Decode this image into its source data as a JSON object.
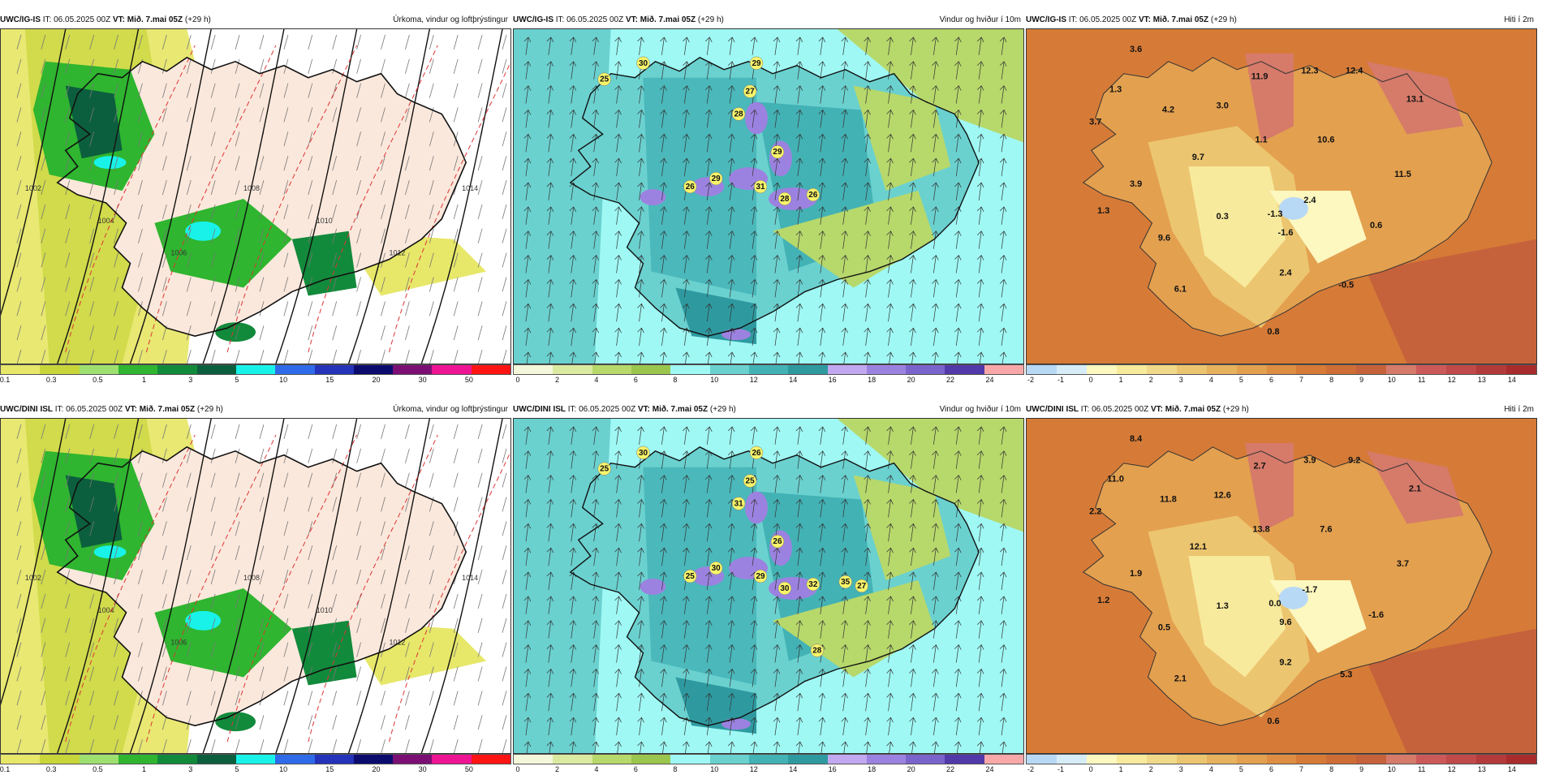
{
  "panels": [
    {
      "model": "UWC/IG-IS",
      "it_prefix": "IT:",
      "it": "06.05.2025 00Z",
      "vt_prefix": "VT:",
      "vt": "Mið. 7.mai 05Z",
      "lead": "(+29 h)",
      "title": "Úrkoma, vindur og loftþrýstingur",
      "legend": [
        "0.1",
        "0.3",
        "0.5",
        "1",
        "3",
        "5",
        "10",
        "15",
        "20",
        "30",
        "50"
      ],
      "legend_colors": [
        "#e7e76a",
        "#c8d63a",
        "#9ee06f",
        "#2fb52f",
        "#128a3b",
        "#0c5f3e",
        "#19f2e8",
        "#2f6ae9",
        "#2433b9",
        "#0b0b6e",
        "#7b0f74",
        "#ee1493",
        "#ff1414"
      ],
      "isobars": [
        "1002",
        "1004",
        "1006",
        "1008",
        "1010",
        "1012",
        "1014"
      ]
    },
    {
      "model": "UWC/IG-IS",
      "it_prefix": "IT:",
      "it": "06.05.2025 00Z",
      "vt_prefix": "VT:",
      "vt": "Mið. 7.mai 05Z",
      "lead": "(+29 h)",
      "title": "Vindur og hviður í 10m",
      "legend": [
        "0",
        "2",
        "4",
        "6",
        "8",
        "10",
        "12",
        "14",
        "16",
        "18",
        "20",
        "22",
        "24"
      ],
      "legend_colors": [
        "#f4f7d9",
        "#dbeaa1",
        "#b7d86b",
        "#9bc64d",
        "#9ff8f4",
        "#6ad1cf",
        "#43b2b5",
        "#2e9aa0",
        "#c1a8f0",
        "#9c82e0",
        "#7a64cc",
        "#5239a9",
        "#f8a8a8"
      ],
      "gusts": [
        "25",
        "30",
        "27",
        "29",
        "28",
        "29",
        "26",
        "29",
        "31",
        "28",
        "26"
      ]
    },
    {
      "model": "UWC/IG-IS",
      "it_prefix": "IT:",
      "it": "06.05.2025 00Z",
      "vt_prefix": "VT:",
      "vt": "Mið. 7.mai 05Z",
      "lead": "(+29 h)",
      "title": "Hiti í 2m",
      "legend": [
        "-2",
        "-1",
        "0",
        "1",
        "2",
        "3",
        "4",
        "5",
        "6",
        "7",
        "8",
        "9",
        "10",
        "11",
        "12",
        "13",
        "14"
      ],
      "legend_colors": [
        "#b8d9f5",
        "#d6ecf7",
        "#fdf7c0",
        "#f8ea9d",
        "#f1d98a",
        "#ecc570",
        "#e6b25e",
        "#e3a04f",
        "#de8e43",
        "#d67b37",
        "#cf6d36",
        "#c6623b",
        "#d67a6a",
        "#cc5959",
        "#c04a4a",
        "#b33a3a",
        "#a82c2c"
      ],
      "temps": [
        "3.6",
        "1.3",
        "3.7",
        "4.2",
        "3.0",
        "11.9",
        "1.1",
        "12.3",
        "12.4",
        "13.1",
        "10.6",
        "9.7",
        "11.5",
        "3.9",
        "1.3",
        "0.3",
        "-1.3",
        "2.4",
        "-1.6",
        "0.6",
        "9.6",
        "2.4",
        "6.1",
        "-0.5",
        "0.8"
      ]
    },
    {
      "model": "UWC/DINI ISL",
      "it_prefix": "IT:",
      "it": "06.05.2025 00Z",
      "vt_prefix": "VT:",
      "vt": "Mið. 7.mai 05Z",
      "lead": "(+29 h)",
      "title": "Úrkoma, vindur og loftþrýstingur",
      "legend": [
        "0.1",
        "0.3",
        "0.5",
        "1",
        "3",
        "5",
        "10",
        "15",
        "20",
        "30",
        "50"
      ],
      "legend_colors": [
        "#e7e76a",
        "#c8d63a",
        "#9ee06f",
        "#2fb52f",
        "#128a3b",
        "#0c5f3e",
        "#19f2e8",
        "#2f6ae9",
        "#2433b9",
        "#0b0b6e",
        "#7b0f74",
        "#ee1493",
        "#ff1414"
      ],
      "isobars": [
        "1002",
        "1004",
        "1006",
        "1008",
        "1010",
        "1012",
        "1014"
      ]
    },
    {
      "model": "UWC/DINI ISL",
      "it_prefix": "IT:",
      "it": "06.05.2025 00Z",
      "vt_prefix": "VT:",
      "vt": "Mið. 7.mai 05Z",
      "lead": "(+29 h)",
      "title": "Vindur og hviður í 10m",
      "legend": [
        "0",
        "2",
        "4",
        "6",
        "8",
        "10",
        "12",
        "14",
        "16",
        "18",
        "20",
        "22",
        "24"
      ],
      "legend_colors": [
        "#f4f7d9",
        "#dbeaa1",
        "#b7d86b",
        "#9bc64d",
        "#9ff8f4",
        "#6ad1cf",
        "#43b2b5",
        "#2e9aa0",
        "#c1a8f0",
        "#9c82e0",
        "#7a64cc",
        "#5239a9",
        "#f8a8a8"
      ],
      "gusts": [
        "25",
        "30",
        "25",
        "26",
        "31",
        "26",
        "25",
        "30",
        "29",
        "30",
        "32",
        "35",
        "27",
        "28"
      ]
    },
    {
      "model": "UWC/DINI ISL",
      "it_prefix": "IT:",
      "it": "06.05.2025 00Z",
      "vt_prefix": "VT:",
      "vt": "Mið. 7.mai 05Z",
      "lead": "(+29 h)",
      "title": "Hiti í 2m",
      "legend": [
        "-2",
        "-1",
        "0",
        "1",
        "2",
        "3",
        "4",
        "5",
        "6",
        "7",
        "8",
        "9",
        "10",
        "11",
        "12",
        "13",
        "14"
      ],
      "legend_colors": [
        "#b8d9f5",
        "#d6ecf7",
        "#fdf7c0",
        "#f8ea9d",
        "#f1d98a",
        "#ecc570",
        "#e6b25e",
        "#e3a04f",
        "#de8e43",
        "#d67b37",
        "#cf6d36",
        "#c6623b",
        "#d67a6a",
        "#cc5959",
        "#c04a4a",
        "#b33a3a",
        "#a82c2c"
      ],
      "temps": [
        "8.4",
        "11.0",
        "2.2",
        "11.8",
        "12.6",
        "2.7",
        "13.8",
        "3.9",
        "9.2",
        "2.1",
        "7.6",
        "12.1",
        "3.7",
        "1.9",
        "1.2",
        "1.3",
        "0.0",
        "-1.7",
        "9.6",
        "-1.6",
        "0.5",
        "9.2",
        "2.1",
        "5.3",
        "0.6"
      ]
    }
  ]
}
